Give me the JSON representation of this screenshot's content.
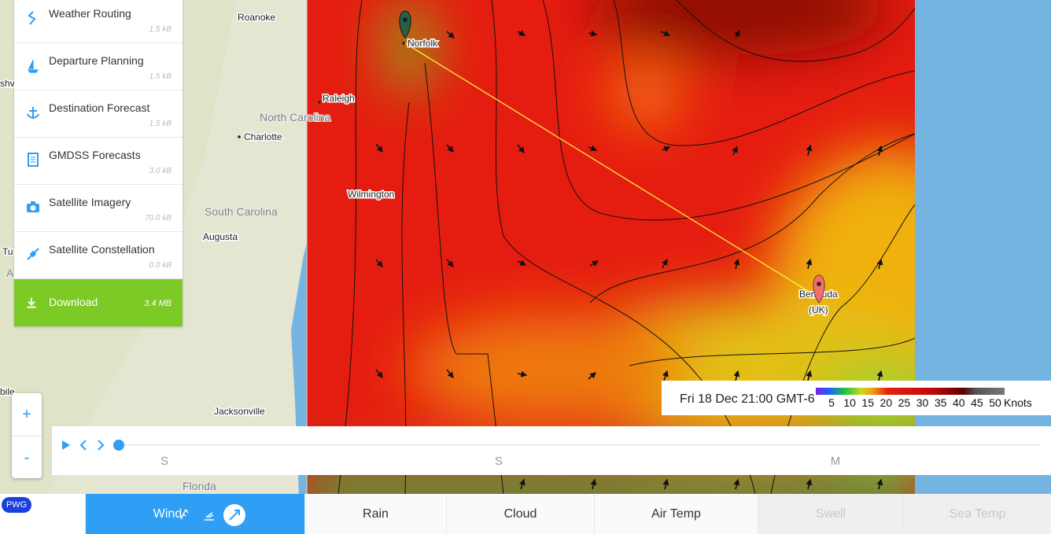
{
  "menu": {
    "items": [
      {
        "label": "Weather Routing",
        "size": "1.5 kB"
      },
      {
        "label": "Departure Planning",
        "size": "1.5 kB"
      },
      {
        "label": "Destination Forecast",
        "size": "1.5 kB"
      },
      {
        "label": "GMDSS Forecasts",
        "size": "3.0 kB"
      },
      {
        "label": "Satellite Imagery",
        "size": "70.0 kB"
      },
      {
        "label": "Satellite Constellation",
        "size": "0.0 kB"
      }
    ],
    "download": {
      "label": "Download",
      "size": "3.4 MB"
    }
  },
  "map": {
    "places": [
      "Roanoke",
      "Norfolk",
      "Raleigh",
      "Charlotte",
      "Wilmington",
      "Augusta",
      "Jacksonville"
    ],
    "regions": [
      "North Carolina",
      "South Carolina",
      "Florida"
    ],
    "edge_labels": [
      "shv",
      "Tu",
      "A",
      "bile"
    ],
    "destination": {
      "name": "Bermuda",
      "note": "(UK)"
    }
  },
  "zoom": {
    "in": "+",
    "out": "-"
  },
  "timeline": {
    "days": [
      "S",
      "S",
      "M"
    ]
  },
  "legend": {
    "time": "Fri 18 Dec 21:00 GMT-6",
    "ticks": [
      5,
      10,
      15,
      20,
      25,
      30,
      35,
      40,
      45,
      50
    ],
    "unit": "Knots"
  },
  "badge": "PWG",
  "tabs": [
    "Wind",
    "Rain",
    "Cloud",
    "Air Temp",
    "Swell",
    "Sea Temp"
  ]
}
